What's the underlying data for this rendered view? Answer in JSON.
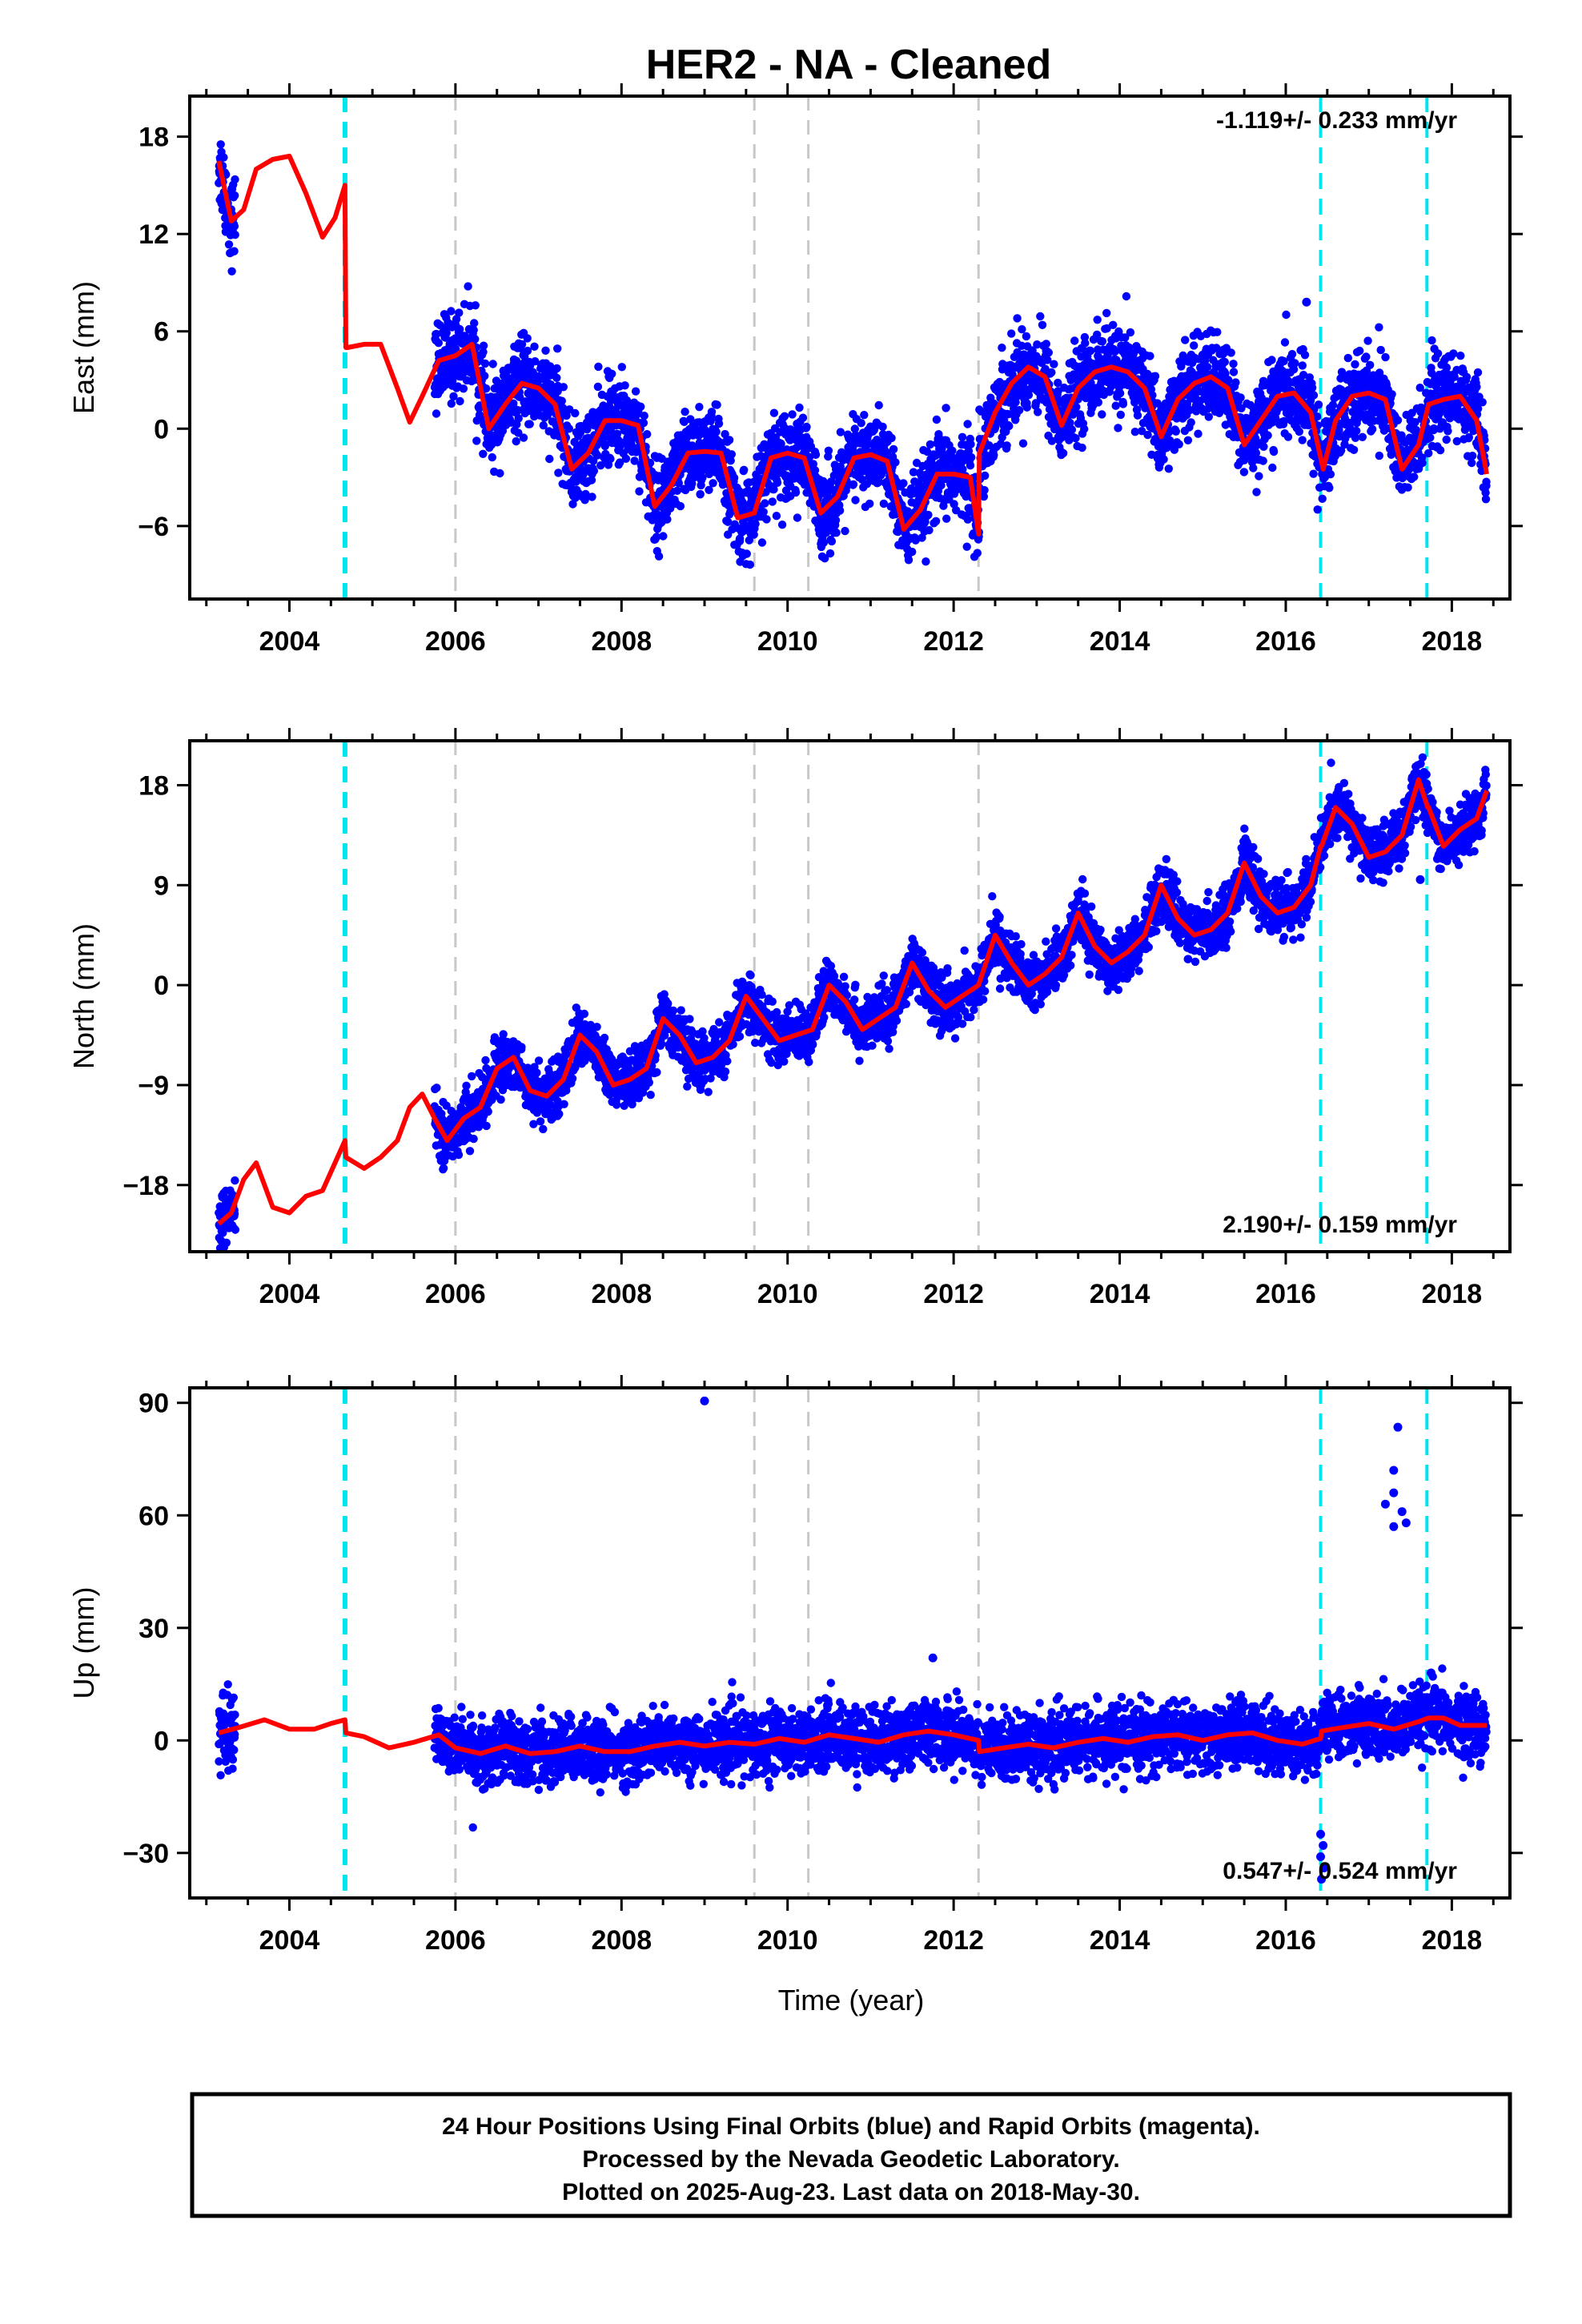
{
  "title": "HER2  - NA - Cleaned",
  "colors": {
    "final_orbits": "#0000ff",
    "model": "#ff0000",
    "equipment_change": "#00e5ee",
    "other_event": "#c8c8c8"
  },
  "chart_data": [
    {
      "type": "scatter",
      "id": "east",
      "ylabel": "East (mm)",
      "xlim": [
        2002.8,
        2018.7
      ],
      "ylim": [
        -10.5,
        20.5
      ],
      "yticks": [
        -6,
        0,
        6,
        12,
        18
      ],
      "xticks": [
        2004,
        2006,
        2008,
        2010,
        2012,
        2014,
        2016,
        2018
      ],
      "rate": "-1.119+/- 0.233 mm/yr",
      "rate_position": "top-right",
      "model": {
        "name": "model",
        "x": [
          2003.15,
          2003.3,
          2003.45,
          2003.6,
          2003.8,
          2004.0,
          2004.2,
          2004.4,
          2004.55,
          2004.67,
          2004.68,
          2004.7,
          2004.9,
          2005.1,
          2005.3,
          2005.45,
          2005.6,
          2005.8,
          2006.0,
          2006.2,
          2006.4,
          2006.6,
          2006.8,
          2007.0,
          2007.2,
          2007.4,
          2007.6,
          2007.8,
          2008.0,
          2008.2,
          2008.4,
          2008.6,
          2008.8,
          2009.0,
          2009.2,
          2009.4,
          2009.6,
          2009.8,
          2010.0,
          2010.2,
          2010.4,
          2010.6,
          2010.8,
          2011.0,
          2011.2,
          2011.4,
          2011.6,
          2011.8,
          2012.0,
          2012.2,
          2012.3,
          2012.31,
          2012.5,
          2012.7,
          2012.9,
          2013.1,
          2013.3,
          2013.5,
          2013.7,
          2013.9,
          2014.1,
          2014.3,
          2014.5,
          2014.7,
          2014.9,
          2015.1,
          2015.3,
          2015.5,
          2015.7,
          2015.9,
          2016.1,
          2016.3,
          2016.45,
          2016.6,
          2016.8,
          2017.0,
          2017.2,
          2017.4,
          2017.6,
          2017.72,
          2017.9,
          2018.1,
          2018.3,
          2018.42
        ],
        "y": [
          16.5,
          12.8,
          13.5,
          16.0,
          16.6,
          16.8,
          14.5,
          11.8,
          13.0,
          15.0,
          5.0,
          5.0,
          5.2,
          5.2,
          2.5,
          0.4,
          2.0,
          4.2,
          4.5,
          5.2,
          0.0,
          1.5,
          2.8,
          2.5,
          1.5,
          -2.5,
          -1.5,
          0.5,
          0.5,
          0.2,
          -4.8,
          -3.5,
          -1.5,
          -1.4,
          -1.5,
          -5.5,
          -5.2,
          -1.8,
          -1.5,
          -1.8,
          -5.2,
          -4.2,
          -1.8,
          -1.6,
          -2.0,
          -6.2,
          -5.0,
          -2.8,
          -2.8,
          -3.0,
          -6.5,
          -1.5,
          1.0,
          2.8,
          3.8,
          3.2,
          0.2,
          2.5,
          3.5,
          3.8,
          3.5,
          2.5,
          -0.5,
          1.8,
          2.8,
          3.2,
          2.5,
          -1.0,
          0.5,
          2.0,
          2.2,
          1.0,
          -2.5,
          0.5,
          2.0,
          2.2,
          1.8,
          -2.5,
          -1.0,
          1.5,
          1.8,
          2.0,
          0.5,
          -2.8
        ]
      },
      "events": {
        "equipment_change": [
          2004.67,
          2016.42,
          2017.7
        ],
        "other": [
          2006.0,
          2009.6,
          2010.25,
          2012.3
        ]
      },
      "outliers": [
        [
          2016.25,
          7.8
        ]
      ]
    },
    {
      "type": "scatter",
      "id": "north",
      "ylabel": "North (mm)",
      "xlim": [
        2002.8,
        2018.7
      ],
      "ylim": [
        -24.0,
        22.0
      ],
      "yticks": [
        -18,
        -9,
        0,
        9,
        18
      ],
      "xticks": [
        2004,
        2006,
        2008,
        2010,
        2012,
        2014,
        2016,
        2018
      ],
      "rate": "2.190+/- 0.159 mm/yr",
      "rate_position": "bottom-right",
      "model": {
        "name": "model",
        "x": [
          2003.15,
          2003.3,
          2003.45,
          2003.6,
          2003.8,
          2004.0,
          2004.2,
          2004.4,
          2004.55,
          2004.67,
          2004.68,
          2004.9,
          2005.1,
          2005.3,
          2005.45,
          2005.6,
          2005.75,
          2005.9,
          2006.1,
          2006.3,
          2006.5,
          2006.7,
          2006.9,
          2007.1,
          2007.3,
          2007.5,
          2007.7,
          2007.9,
          2008.1,
          2008.3,
          2008.5,
          2008.7,
          2008.9,
          2009.1,
          2009.3,
          2009.5,
          2009.7,
          2009.9,
          2010.1,
          2010.3,
          2010.5,
          2010.7,
          2010.9,
          2011.1,
          2011.3,
          2011.5,
          2011.7,
          2011.9,
          2012.1,
          2012.3,
          2012.5,
          2012.7,
          2012.9,
          2013.1,
          2013.3,
          2013.5,
          2013.7,
          2013.9,
          2014.1,
          2014.3,
          2014.5,
          2014.7,
          2014.9,
          2015.1,
          2015.3,
          2015.5,
          2015.7,
          2015.9,
          2016.1,
          2016.3,
          2016.42,
          2016.43,
          2016.6,
          2016.8,
          2017.0,
          2017.2,
          2017.4,
          2017.6,
          2017.71,
          2017.72,
          2017.9,
          2018.1,
          2018.3,
          2018.42
        ],
        "y": [
          -21.5,
          -20.5,
          -17.5,
          -16.0,
          -20.0,
          -20.5,
          -19.0,
          -18.5,
          -16.0,
          -14.0,
          -15.5,
          -16.5,
          -15.5,
          -14.0,
          -11.0,
          -9.8,
          -12.0,
          -14.0,
          -12.0,
          -11.0,
          -7.5,
          -6.5,
          -9.5,
          -10.0,
          -8.5,
          -4.5,
          -6.0,
          -9.0,
          -8.5,
          -7.5,
          -3.0,
          -4.5,
          -7.0,
          -6.5,
          -5.0,
          -1.0,
          -3.0,
          -5.0,
          -4.5,
          -4.0,
          0.0,
          -1.5,
          -4.0,
          -3.0,
          -2.0,
          2.0,
          -0.5,
          -2.0,
          -1.0,
          0.0,
          4.5,
          2.0,
          0.0,
          1.0,
          2.5,
          6.5,
          3.5,
          2.0,
          3.0,
          4.5,
          9.0,
          6.0,
          4.5,
          5.0,
          6.5,
          11.0,
          8.0,
          6.5,
          7.0,
          9.0,
          12.5,
          12.5,
          16.0,
          14.5,
          11.5,
          12.0,
          13.5,
          18.5,
          16.0,
          16.0,
          12.5,
          14.0,
          15.0,
          17.5
        ]
      },
      "events": {
        "equipment_change": [
          2004.67,
          2016.42,
          2017.7
        ],
        "other": [
          2006.0,
          2009.6,
          2010.25,
          2012.3
        ]
      },
      "outliers": [
        [
          2017.62,
          9.5
        ]
      ]
    },
    {
      "type": "scatter",
      "id": "up",
      "ylabel": "Up (mm)",
      "xlabel": "Time (year)",
      "xlim": [
        2002.8,
        2018.7
      ],
      "ylim": [
        -42.0,
        94.0
      ],
      "yticks": [
        -30,
        0,
        30,
        60,
        90
      ],
      "xticks": [
        2004,
        2006,
        2008,
        2010,
        2012,
        2014,
        2016,
        2018
      ],
      "rate": "0.547+/- 0.524 mm/yr",
      "rate_position": "bottom-right",
      "model": {
        "name": "model",
        "x": [
          2003.15,
          2003.4,
          2003.7,
          2004.0,
          2004.3,
          2004.5,
          2004.67,
          2004.68,
          2004.9,
          2005.2,
          2005.5,
          2005.8,
          2006.0,
          2006.3,
          2006.6,
          2006.9,
          2007.2,
          2007.5,
          2007.8,
          2008.1,
          2008.4,
          2008.7,
          2009.0,
          2009.3,
          2009.6,
          2009.9,
          2010.2,
          2010.5,
          2010.8,
          2011.1,
          2011.4,
          2011.7,
          2012.0,
          2012.3,
          2012.31,
          2012.6,
          2012.9,
          2013.2,
          2013.5,
          2013.8,
          2014.1,
          2014.4,
          2014.7,
          2015.0,
          2015.3,
          2015.6,
          2015.9,
          2016.2,
          2016.42,
          2016.43,
          2016.7,
          2017.0,
          2017.3,
          2017.6,
          2017.72,
          2017.9,
          2018.1,
          2018.42
        ],
        "y": [
          2.0,
          3.5,
          5.5,
          3.0,
          3.0,
          4.5,
          5.5,
          2.0,
          1.0,
          -2.0,
          -0.5,
          1.5,
          -2.0,
          -3.5,
          -1.5,
          -3.5,
          -3.0,
          -1.5,
          -3.0,
          -3.0,
          -1.5,
          -0.5,
          -1.5,
          -0.5,
          -1.0,
          0.5,
          -0.5,
          1.5,
          0.5,
          -0.5,
          1.5,
          2.5,
          1.5,
          0.0,
          -3.0,
          -2.0,
          -1.0,
          -2.0,
          -0.5,
          0.5,
          -0.5,
          1.0,
          1.5,
          0.0,
          1.5,
          2.0,
          0.0,
          -1.0,
          0.5,
          2.5,
          3.5,
          4.5,
          3.0,
          5.0,
          6.0,
          6.0,
          4.0,
          4.0
        ]
      },
      "events": {
        "equipment_change": [
          2004.67,
          2016.42,
          2017.7
        ],
        "other": [
          2006.0,
          2009.6,
          2010.25,
          2012.3
        ]
      },
      "outliers": [
        [
          2009.0,
          90.5
        ],
        [
          2011.75,
          22.0
        ],
        [
          2017.35,
          83.5
        ],
        [
          2017.3,
          72.0
        ],
        [
          2017.3,
          66.0
        ],
        [
          2017.2,
          63.0
        ],
        [
          2017.4,
          61.0
        ],
        [
          2017.45,
          58.0
        ],
        [
          2017.3,
          57.0
        ],
        [
          2017.75,
          18.0
        ],
        [
          2016.42,
          -25.0
        ],
        [
          2016.45,
          -28.0
        ],
        [
          2016.42,
          -31.0
        ],
        [
          2016.46,
          -34.0
        ],
        [
          2016.43,
          -37.0
        ]
      ]
    }
  ],
  "footer": {
    "line1": "24 Hour Positions Using Final Orbits (blue) and Rapid Orbits (magenta).",
    "line2": "Processed by the Nevada Geodetic Laboratory.",
    "line3": "Plotted on 2025-Aug-23. Last data on 2018-May-30."
  }
}
